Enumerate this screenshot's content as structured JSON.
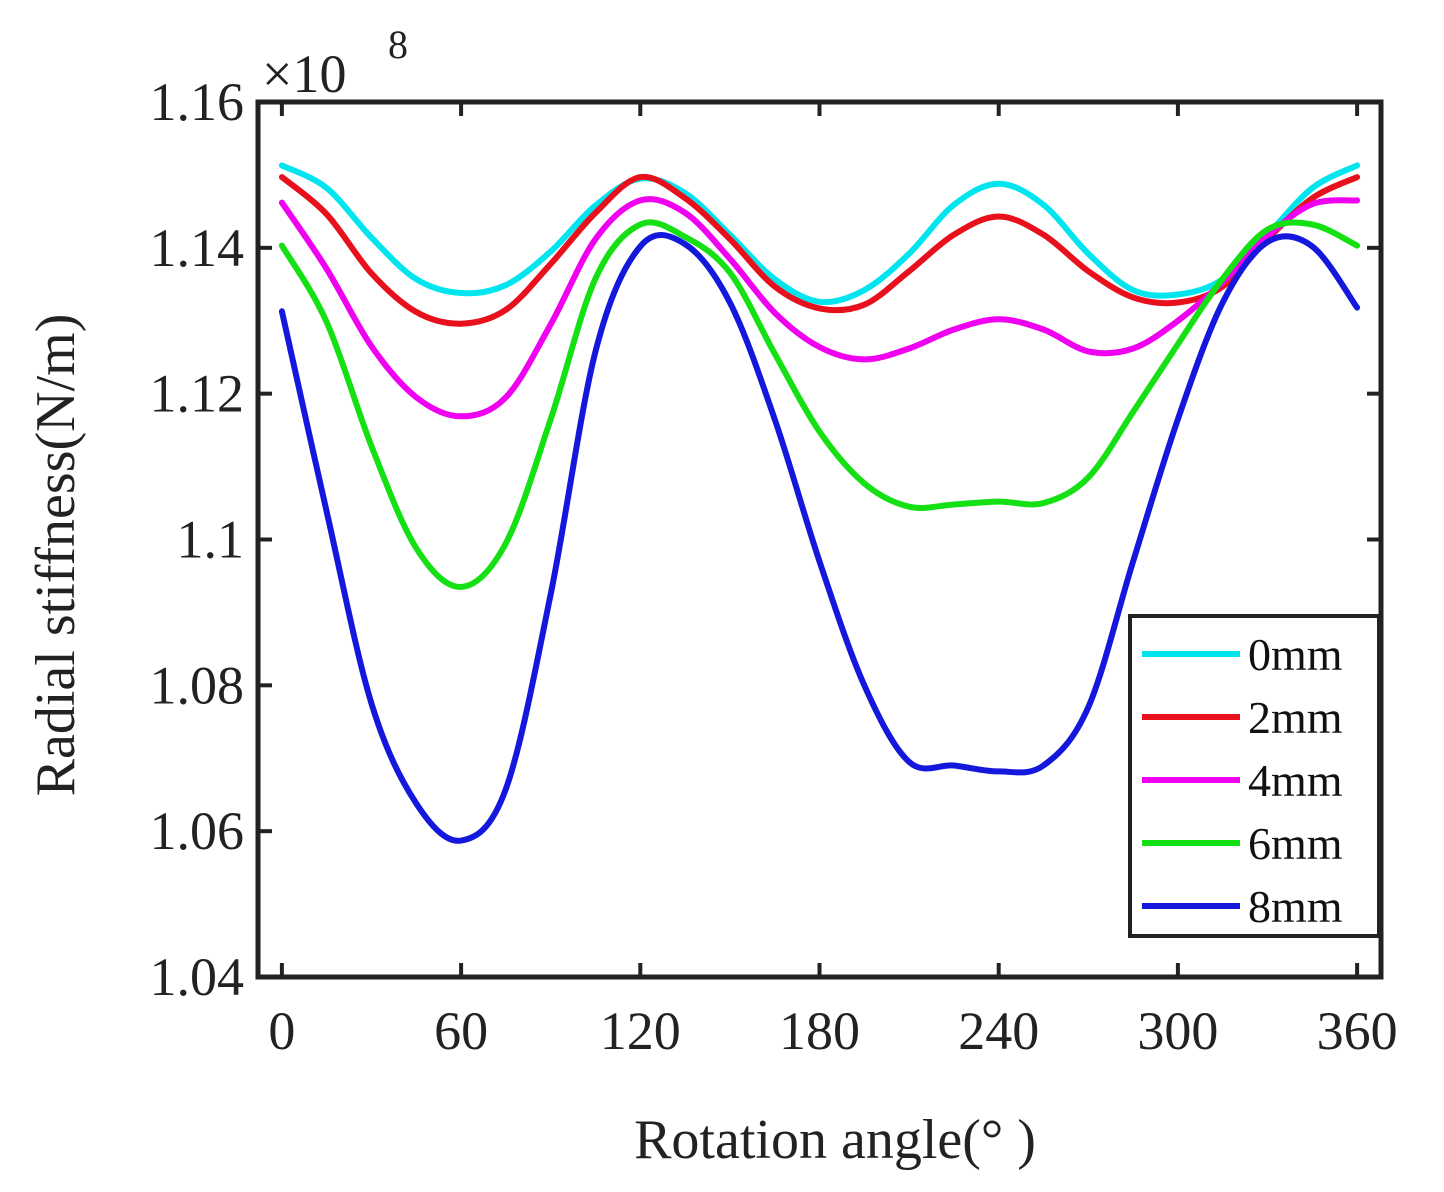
{
  "chart_data": {
    "type": "line",
    "title": "",
    "xlabel": "Rotation angle(° )",
    "ylabel": "Radial stiffness(N/m)",
    "exponent_label": "×10",
    "exponent_power": "8",
    "xlim": [
      -8,
      368
    ],
    "ylim": [
      1.04,
      1.16
    ],
    "xticks": [
      0,
      60,
      120,
      180,
      240,
      300,
      360
    ],
    "xtick_labels": [
      "0",
      "60",
      "120",
      "180",
      "240",
      "300",
      "360"
    ],
    "yticks": [
      1.04,
      1.06,
      1.08,
      1.1,
      1.12,
      1.14,
      1.16
    ],
    "ytick_labels": [
      "1.04",
      "1.06",
      "1.08",
      "1.1",
      "1.12",
      "1.14",
      "1.16"
    ],
    "grid": false,
    "legend_position": "bottom-right",
    "x": [
      0,
      15,
      30,
      45,
      60,
      75,
      90,
      105,
      120,
      135,
      150,
      165,
      180,
      195,
      210,
      225,
      240,
      255,
      270,
      285,
      300,
      315,
      330,
      345,
      360
    ],
    "series": [
      {
        "name": "0mm",
        "color": "#00e5ee",
        "values": [
          1.1513,
          1.1482,
          1.1414,
          1.1357,
          1.1338,
          1.1349,
          1.1395,
          1.1458,
          1.1495,
          1.1475,
          1.1418,
          1.1357,
          1.1326,
          1.1342,
          1.1392,
          1.1459,
          1.1488,
          1.1459,
          1.1392,
          1.1342,
          1.1336,
          1.1357,
          1.1418,
          1.1482,
          1.1513
        ]
      },
      {
        "name": "2mm",
        "color": "#e8101c",
        "values": [
          1.1497,
          1.1446,
          1.1365,
          1.1312,
          1.1296,
          1.1315,
          1.1378,
          1.1448,
          1.1497,
          1.1468,
          1.1412,
          1.1347,
          1.1317,
          1.1322,
          1.1368,
          1.1418,
          1.1443,
          1.1418,
          1.1368,
          1.1332,
          1.1325,
          1.1347,
          1.1412,
          1.1468,
          1.1497
        ]
      },
      {
        "name": "4mm",
        "color": "#f000f0",
        "values": [
          1.1462,
          1.1371,
          1.1265,
          1.1195,
          1.1169,
          1.1195,
          1.1295,
          1.1412,
          1.1465,
          1.1448,
          1.1385,
          1.1311,
          1.1264,
          1.1247,
          1.1262,
          1.1288,
          1.1302,
          1.1288,
          1.1258,
          1.1262,
          1.13,
          1.1353,
          1.1416,
          1.146,
          1.1465
        ]
      },
      {
        "name": "6mm",
        "color": "#14e014",
        "values": [
          1.1403,
          1.1298,
          1.1128,
          1.0988,
          1.0935,
          1.0995,
          1.1165,
          1.1358,
          1.1432,
          1.1415,
          1.1366,
          1.1255,
          1.1148,
          1.1077,
          1.1045,
          1.1048,
          1.1052,
          1.105,
          1.1085,
          1.1175,
          1.1268,
          1.1358,
          1.1425,
          1.1432,
          1.1403
        ]
      },
      {
        "name": "8mm",
        "color": "#1418dc",
        "values": [
          1.1313,
          1.1038,
          1.0775,
          1.0638,
          1.0587,
          1.0658,
          1.0925,
          1.1258,
          1.1402,
          1.1405,
          1.1325,
          1.1165,
          1.097,
          1.08,
          1.0695,
          1.069,
          1.0682,
          1.069,
          1.077,
          1.097,
          1.1165,
          1.1325,
          1.1408,
          1.1402,
          1.1318
        ]
      }
    ]
  }
}
